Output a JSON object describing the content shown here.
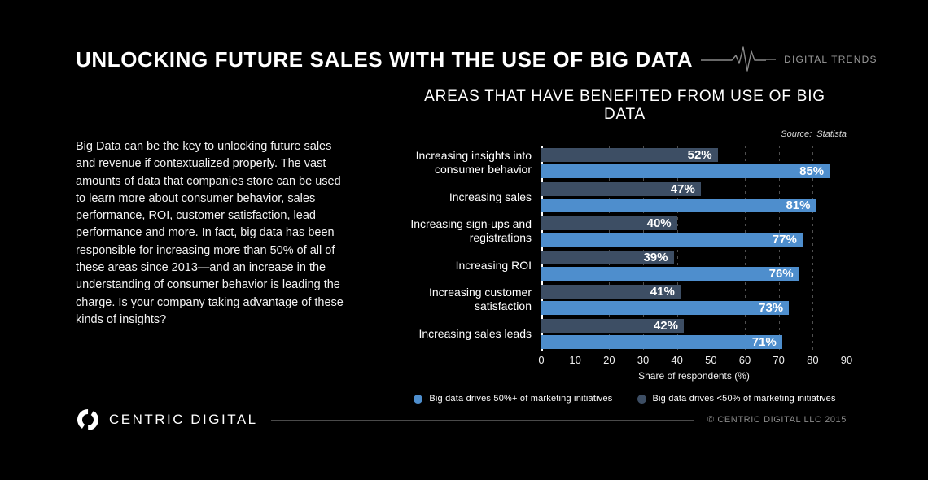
{
  "header": {
    "title": "UNLOCKING FUTURE SALES WITH THE USE OF BIG DATA",
    "trends_label": "DIGITAL TRENDS"
  },
  "intro": {
    "paragraph": "Big Data can be the key to unlocking future sales and revenue if contextualized properly. The vast amounts of data that companies store can be used to learn more about consumer behavior, sales performance, ROI, customer satisfaction, lead performance and more.  In fact, big data has been responsible for increasing more than 50% of all of these areas since 2013—and an increase in the understanding of consumer behavior is leading the charge. Is your company taking advantage of these kinds of insights?"
  },
  "chart_data": {
    "type": "bar",
    "orientation": "horizontal",
    "title": "AREAS THAT HAVE BENEFITED FROM USE OF BIG DATA",
    "source": "Source:  Statista",
    "categories": [
      "Increasing insights into consumer behavior",
      "Increasing sales",
      "Increasing sign-ups and registrations",
      "Increasing ROI",
      "Increasing customer satisfaction",
      "Increasing sales leads"
    ],
    "series": [
      {
        "name": "Big data drives <50% of marketing initiatives",
        "color": "#3D4E64",
        "values": [
          52,
          47,
          40,
          39,
          41,
          42
        ]
      },
      {
        "name": "Big data drives 50%+ of marketing initiatives",
        "color": "#4E8ECD",
        "values": [
          85,
          81,
          77,
          76,
          73,
          71
        ]
      }
    ],
    "legend_order": [
      1,
      0
    ],
    "value_suffix": "%",
    "xlabel": "Share of respondents (%)",
    "xlim": [
      0,
      90
    ],
    "xticks": [
      0,
      10,
      20,
      30,
      40,
      50,
      60,
      70,
      80,
      90
    ],
    "grid": "dashed-vertical",
    "legend_position": "bottom"
  },
  "footer": {
    "brand": "CENTRIC DIGITAL",
    "copyright": "© CENTRIC DIGITAL LLC 2015"
  },
  "colors": {
    "background": "#000000",
    "light_bar": "#4E8ECD",
    "dark_bar": "#3D4E64",
    "gridline": "#4F4F4F",
    "muted_text": "#9A9A9A"
  }
}
